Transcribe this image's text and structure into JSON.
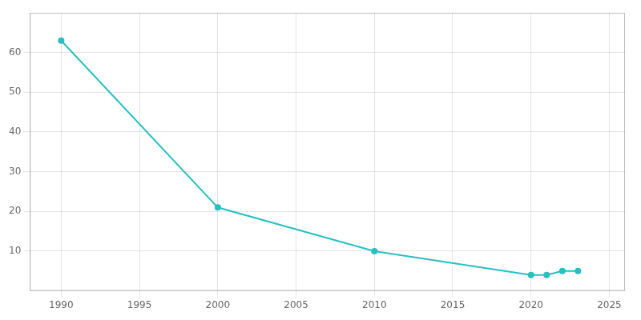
{
  "chart_data": {
    "type": "line",
    "x": [
      1990,
      2000,
      2010,
      2020,
      2021,
      2022,
      2023
    ],
    "values": [
      63,
      21,
      10,
      4,
      4,
      5,
      5
    ],
    "color": "#2abfbf",
    "marker": "circle",
    "line_style": "solid",
    "xlim": [
      1988,
      2026
    ],
    "xticks": [
      1990,
      1995,
      2000,
      2005,
      2010,
      2015,
      2020,
      2025
    ],
    "ylim": [
      0,
      70
    ],
    "yticks": [
      10,
      20,
      30,
      40,
      50,
      60
    ],
    "grid": true
  }
}
